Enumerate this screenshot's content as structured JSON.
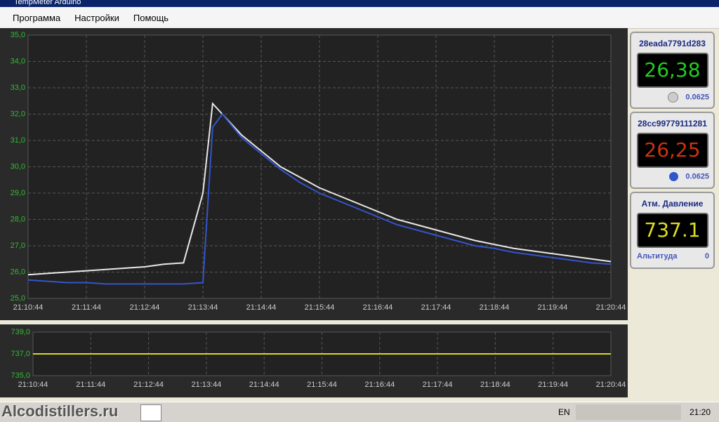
{
  "window": {
    "title": "TempMeter Arduino"
  },
  "menu": [
    "Программа",
    "Настройки",
    "Помощь"
  ],
  "chart_data": [
    {
      "type": "line",
      "x": [
        "21:10:44",
        "21:11:04",
        "21:11:24",
        "21:11:44",
        "21:12:04",
        "21:12:24",
        "21:12:44",
        "21:13:04",
        "21:13:24",
        "21:13:44",
        "21:13:54",
        "21:14:04",
        "21:14:24",
        "21:14:44",
        "21:15:04",
        "21:15:24",
        "21:15:44",
        "21:16:04",
        "21:16:24",
        "21:16:44",
        "21:17:04",
        "21:17:24",
        "21:17:44",
        "21:18:04",
        "21:18:24",
        "21:18:44",
        "21:19:04",
        "21:19:24",
        "21:19:44",
        "21:20:04",
        "21:20:24",
        "21:20:44"
      ],
      "series": [
        {
          "name": "28eada7791d283",
          "color": "#e8e8e8",
          "values": [
            25.9,
            25.95,
            26.0,
            26.05,
            26.1,
            26.15,
            26.2,
            26.3,
            26.35,
            29.0,
            32.4,
            32.0,
            31.2,
            30.6,
            30.0,
            29.6,
            29.2,
            28.9,
            28.6,
            28.3,
            28.0,
            27.8,
            27.6,
            27.4,
            27.2,
            27.05,
            26.9,
            26.8,
            26.7,
            26.6,
            26.5,
            26.4
          ]
        },
        {
          "name": "28cc99779111281",
          "color": "#3355cc",
          "values": [
            25.7,
            25.65,
            25.6,
            25.6,
            25.55,
            25.55,
            25.55,
            25.55,
            25.55,
            25.6,
            31.5,
            32.0,
            31.1,
            30.5,
            29.9,
            29.4,
            29.0,
            28.7,
            28.4,
            28.1,
            27.8,
            27.6,
            27.4,
            27.2,
            27.0,
            26.9,
            26.75,
            26.65,
            26.55,
            26.45,
            26.35,
            26.3
          ]
        }
      ],
      "xlim": [
        "21:10:44",
        "21:20:44"
      ],
      "xticks": [
        "21:10:44",
        "21:11:44",
        "21:12:44",
        "21:13:44",
        "21:14:44",
        "21:15:44",
        "21:16:44",
        "21:17:44",
        "21:18:44",
        "21:19:44",
        "21:20:44"
      ],
      "ylim": [
        25,
        35
      ],
      "yticks": [
        {
          "value": 25,
          "label": "25,0"
        },
        {
          "value": 26,
          "label": "26,0"
        },
        {
          "value": 27,
          "label": "27,0"
        },
        {
          "value": 28,
          "label": "28,0"
        },
        {
          "value": 29,
          "label": "29,0"
        },
        {
          "value": 30,
          "label": "30,0"
        },
        {
          "value": 31,
          "label": "31,0"
        },
        {
          "value": 32,
          "label": "32,0"
        },
        {
          "value": 33,
          "label": "33,0"
        },
        {
          "value": 34,
          "label": "34,0"
        },
        {
          "value": 35,
          "label": "35,0"
        }
      ],
      "grid": true
    },
    {
      "type": "line",
      "x": [
        "21:10:44",
        "21:11:44",
        "21:12:44",
        "21:13:44",
        "21:14:44",
        "21:15:44",
        "21:16:44",
        "21:17:44",
        "21:18:44",
        "21:19:44",
        "21:20:44"
      ],
      "series": [
        {
          "name": "Атм. Давление",
          "color": "#d8d820",
          "values": [
            737.0,
            737.0,
            737.0,
            737.0,
            737.0,
            737.0,
            737.0,
            737.0,
            737.0,
            737.0,
            737.0
          ]
        }
      ],
      "xlim": [
        "21:10:44",
        "21:20:44"
      ],
      "xticks": [
        "21:10:44",
        "21:11:44",
        "21:12:44",
        "21:13:44",
        "21:14:44",
        "21:15:44",
        "21:16:44",
        "21:17:44",
        "21:18:44",
        "21:19:44",
        "21:20:44"
      ],
      "ylim": [
        735,
        739
      ],
      "yticks": [
        {
          "value": 735,
          "label": "735,0"
        },
        {
          "value": 737,
          "label": "737,0"
        },
        {
          "value": 739,
          "label": "739,0"
        }
      ],
      "grid": true
    }
  ],
  "sensors": [
    {
      "id": "28eada7791d283",
      "value": "26,38",
      "resolution": "0.0625"
    },
    {
      "id": "28cc99779111281",
      "value": "26,25",
      "resolution": "0.0625"
    }
  ],
  "pressure": {
    "title": "Атм. Давление",
    "value": "737.1",
    "altitude_label": "Альтитуда",
    "altitude": "0"
  },
  "taskbar": {
    "watermark": "Alcodistillers.ru",
    "lang": "EN",
    "clock": "21:20"
  }
}
